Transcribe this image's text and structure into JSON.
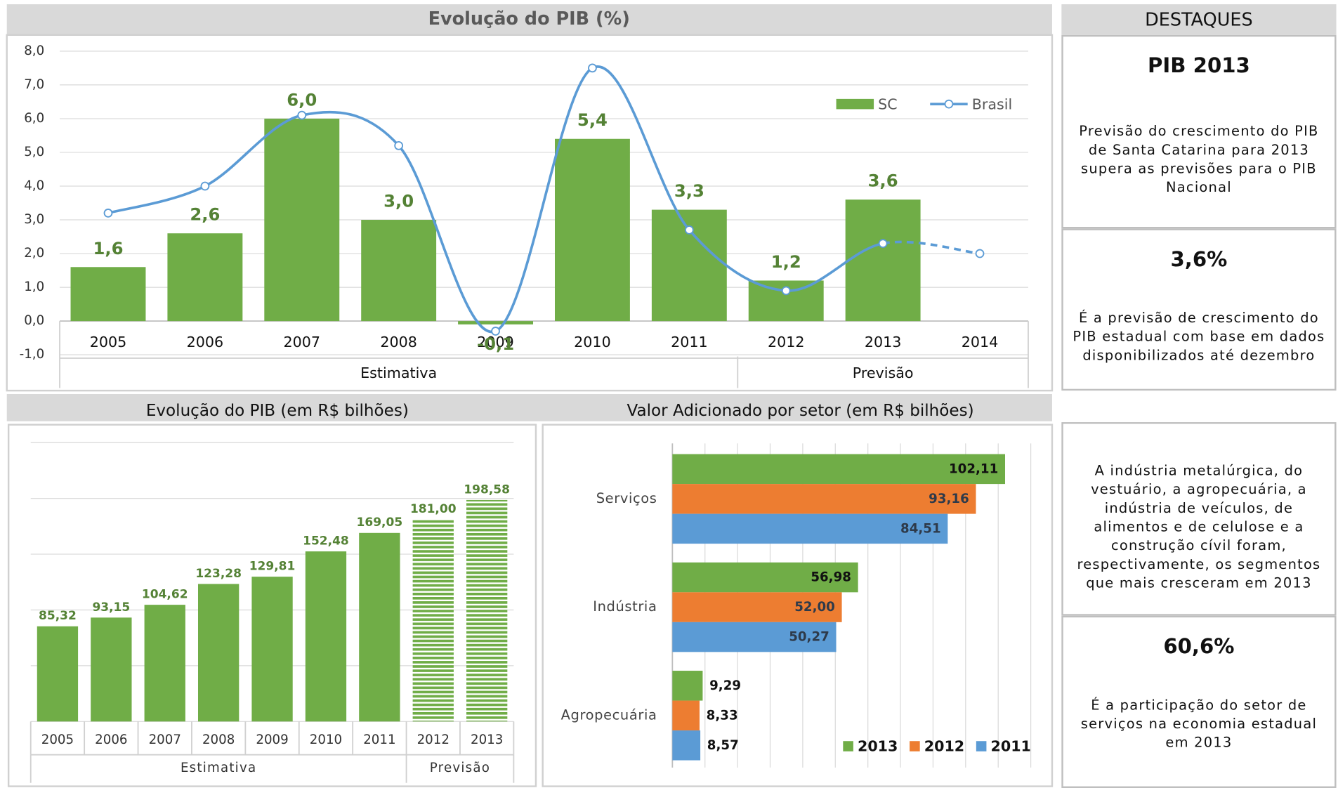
{
  "chart_data": [
    {
      "type": "bar",
      "title": "Evolução do PIB (%)",
      "categories": [
        "2005",
        "2006",
        "2007",
        "2008",
        "2009",
        "2010",
        "2011",
        "2012",
        "2013",
        "2014"
      ],
      "groups": [
        "Estimativa",
        "Previsão"
      ],
      "series": [
        {
          "name": "SC",
          "type": "bar",
          "color": "#70ad47",
          "values": [
            1.6,
            2.6,
            6.0,
            3.0,
            -0.1,
            5.4,
            3.3,
            1.2,
            3.6,
            null
          ],
          "value_labels": [
            "1,6",
            "2,6",
            "6,0",
            "3,0",
            "-0,1",
            "5,4",
            "3,3",
            "1,2",
            "3,6",
            null
          ]
        },
        {
          "name": "Brasil",
          "type": "line",
          "color": "#5b9bd5",
          "values": [
            3.2,
            4.0,
            6.1,
            5.2,
            -0.3,
            7.5,
            2.7,
            0.9,
            2.3,
            2.0
          ]
        }
      ],
      "ylim": [
        -1,
        8
      ],
      "yticks": [
        {
          "value": -1,
          "label": "-1,0"
        },
        {
          "value": 0,
          "label": "0,0"
        },
        {
          "value": 1,
          "label": "1,0"
        },
        {
          "value": 2,
          "label": "2,0"
        },
        {
          "value": 3,
          "label": "3,0"
        },
        {
          "value": 4,
          "label": "4,0"
        },
        {
          "value": 5,
          "label": "5,0"
        },
        {
          "value": 6,
          "label": "6,0"
        },
        {
          "value": 7,
          "label": "7,0"
        },
        {
          "value": 8,
          "label": "8,0"
        }
      ],
      "grid": true,
      "legend": "upper right"
    },
    {
      "type": "bar",
      "title": "Evolução do PIB (em R$ bilhões)",
      "categories": [
        "2005",
        "2006",
        "2007",
        "2008",
        "2009",
        "2010",
        "2011",
        "2012",
        "2013"
      ],
      "groups": [
        "Estimativa",
        "Previsão"
      ],
      "values": [
        85.32,
        93.15,
        104.62,
        123.28,
        129.81,
        152.48,
        169.05,
        181.0,
        198.58
      ],
      "value_labels": [
        "85,32",
        "93,15",
        "104,62",
        "123,28",
        "129,81",
        "152,48",
        "169,05",
        "181,00",
        "198,58"
      ],
      "color": "#70ad47",
      "ylim": [
        0,
        250
      ],
      "yticks": [
        0,
        50,
        100,
        150,
        200,
        250
      ],
      "grid": true
    },
    {
      "type": "barh",
      "title": "Valor Adicionado por setor (em R$ bilhões)",
      "categories": [
        "Serviços",
        "Indústria",
        "Agropecuária"
      ],
      "series": [
        {
          "name": "2013",
          "color": "#70ad47",
          "values": [
            102.11,
            56.98,
            9.29
          ],
          "value_labels": [
            "102,11",
            "56,98",
            "9,29"
          ]
        },
        {
          "name": "2012",
          "color": "#ed7d31",
          "values": [
            93.16,
            52.0,
            8.33
          ],
          "value_labels": [
            "93,16",
            "52,00",
            "8,33"
          ]
        },
        {
          "name": "2011",
          "color": "#5b9bd5",
          "values": [
            84.51,
            50.27,
            8.57
          ],
          "value_labels": [
            "84,51",
            "50,27",
            "8,57"
          ]
        }
      ],
      "xlim": [
        0,
        110
      ],
      "xticks": [
        0,
        10,
        20,
        30,
        40,
        50,
        60,
        70,
        80,
        90,
        100,
        110
      ],
      "grid": true,
      "legend": "lower right"
    }
  ],
  "highlights": {
    "title": "DESTAQUES",
    "items": [
      {
        "heading": "PIB 2013",
        "text": "Previsão do crescimento do PIB de Santa Catarina para 2013 supera as previsões para o PIB Nacional"
      },
      {
        "heading": "3,6%",
        "text": "É a previsão de crescimento do PIB estadual com base em dados disponibilizados até dezembro"
      },
      {
        "text": "A indústria metalúrgica, do vestuário, a agropecuária, a indústria de veículos, de alimentos e de celulose e a construção cívil  foram, respectivamente, os segmentos que mais cresceram em 2013"
      },
      {
        "heading": "60,6%",
        "text": "É a participação do setor de serviços na economia estadual em 2013"
      }
    ]
  }
}
